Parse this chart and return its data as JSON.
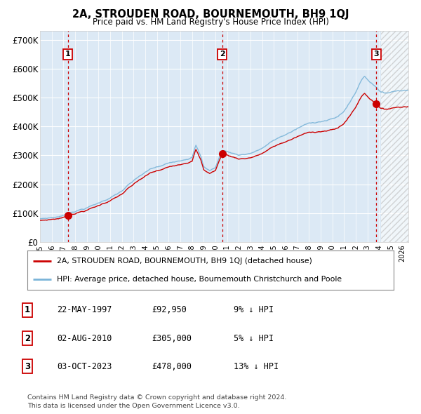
{
  "title": "2A, STROUDEN ROAD, BOURNEMOUTH, BH9 1QJ",
  "subtitle": "Price paid vs. HM Land Registry's House Price Index (HPI)",
  "xlim_start": 1995.0,
  "xlim_end": 2026.5,
  "ylim": [
    0,
    730000
  ],
  "yticks": [
    0,
    100000,
    200000,
    300000,
    400000,
    500000,
    600000,
    700000
  ],
  "ytick_labels": [
    "£0",
    "£100K",
    "£200K",
    "£300K",
    "£400K",
    "£500K",
    "£600K",
    "£700K"
  ],
  "sale_dates_decimal": [
    1997.39,
    2010.58,
    2023.75
  ],
  "sale_prices": [
    92950,
    305000,
    478000
  ],
  "sale_labels": [
    "1",
    "2",
    "3"
  ],
  "vline_color": "#cc0000",
  "dot_color": "#cc0000",
  "hpi_line_color": "#7ab4d8",
  "sale_line_color": "#cc0000",
  "bg_color": "#dce9f5",
  "hatch_start": 2024.17,
  "legend_label_sale": "2A, STROUDEN ROAD, BOURNEMOUTH, BH9 1QJ (detached house)",
  "legend_label_hpi": "HPI: Average price, detached house, Bournemouth Christchurch and Poole",
  "table_rows": [
    [
      "1",
      "22-MAY-1997",
      "£92,950",
      "9% ↓ HPI"
    ],
    [
      "2",
      "02-AUG-2010",
      "£305,000",
      "5% ↓ HPI"
    ],
    [
      "3",
      "03-OCT-2023",
      "£478,000",
      "13% ↓ HPI"
    ]
  ],
  "footer": "Contains HM Land Registry data © Crown copyright and database right 2024.\nThis data is licensed under the Open Government Licence v3.0.",
  "hpi_key_points": [
    [
      1995.0,
      80000
    ],
    [
      1995.5,
      82000
    ],
    [
      1996.0,
      85000
    ],
    [
      1996.5,
      88000
    ],
    [
      1997.0,
      92000
    ],
    [
      1997.39,
      102200
    ],
    [
      1997.5,
      103000
    ],
    [
      1998.0,
      110000
    ],
    [
      1998.5,
      116000
    ],
    [
      1999.0,
      122000
    ],
    [
      1999.5,
      130000
    ],
    [
      2000.0,
      138000
    ],
    [
      2000.5,
      148000
    ],
    [
      2001.0,
      158000
    ],
    [
      2001.5,
      168000
    ],
    [
      2002.0,
      180000
    ],
    [
      2002.5,
      198000
    ],
    [
      2003.0,
      212000
    ],
    [
      2003.5,
      228000
    ],
    [
      2004.0,
      240000
    ],
    [
      2004.5,
      252000
    ],
    [
      2005.0,
      258000
    ],
    [
      2005.5,
      262000
    ],
    [
      2006.0,
      270000
    ],
    [
      2006.5,
      278000
    ],
    [
      2007.0,
      284000
    ],
    [
      2007.5,
      292000
    ],
    [
      2008.0,
      298000
    ],
    [
      2008.33,
      340000
    ],
    [
      2008.75,
      300000
    ],
    [
      2009.0,
      265000
    ],
    [
      2009.5,
      252000
    ],
    [
      2010.0,
      262000
    ],
    [
      2010.58,
      322000
    ],
    [
      2011.0,
      318000
    ],
    [
      2011.5,
      312000
    ],
    [
      2012.0,
      308000
    ],
    [
      2012.5,
      310000
    ],
    [
      2013.0,
      315000
    ],
    [
      2013.5,
      322000
    ],
    [
      2014.0,
      332000
    ],
    [
      2014.5,
      345000
    ],
    [
      2015.0,
      358000
    ],
    [
      2015.5,
      368000
    ],
    [
      2016.0,
      378000
    ],
    [
      2016.5,
      388000
    ],
    [
      2017.0,
      398000
    ],
    [
      2017.5,
      408000
    ],
    [
      2018.0,
      415000
    ],
    [
      2018.5,
      420000
    ],
    [
      2019.0,
      425000
    ],
    [
      2019.5,
      428000
    ],
    [
      2020.0,
      432000
    ],
    [
      2020.5,
      440000
    ],
    [
      2021.0,
      460000
    ],
    [
      2021.5,
      490000
    ],
    [
      2022.0,
      525000
    ],
    [
      2022.25,
      548000
    ],
    [
      2022.5,
      568000
    ],
    [
      2022.75,
      582000
    ],
    [
      2023.0,
      572000
    ],
    [
      2023.25,
      562000
    ],
    [
      2023.5,
      555000
    ],
    [
      2023.75,
      549000
    ],
    [
      2024.0,
      535000
    ],
    [
      2024.17,
      528000
    ],
    [
      2024.5,
      525000
    ],
    [
      2025.0,
      530000
    ],
    [
      2025.5,
      535000
    ],
    [
      2026.0,
      538000
    ],
    [
      2026.5,
      540000
    ]
  ]
}
